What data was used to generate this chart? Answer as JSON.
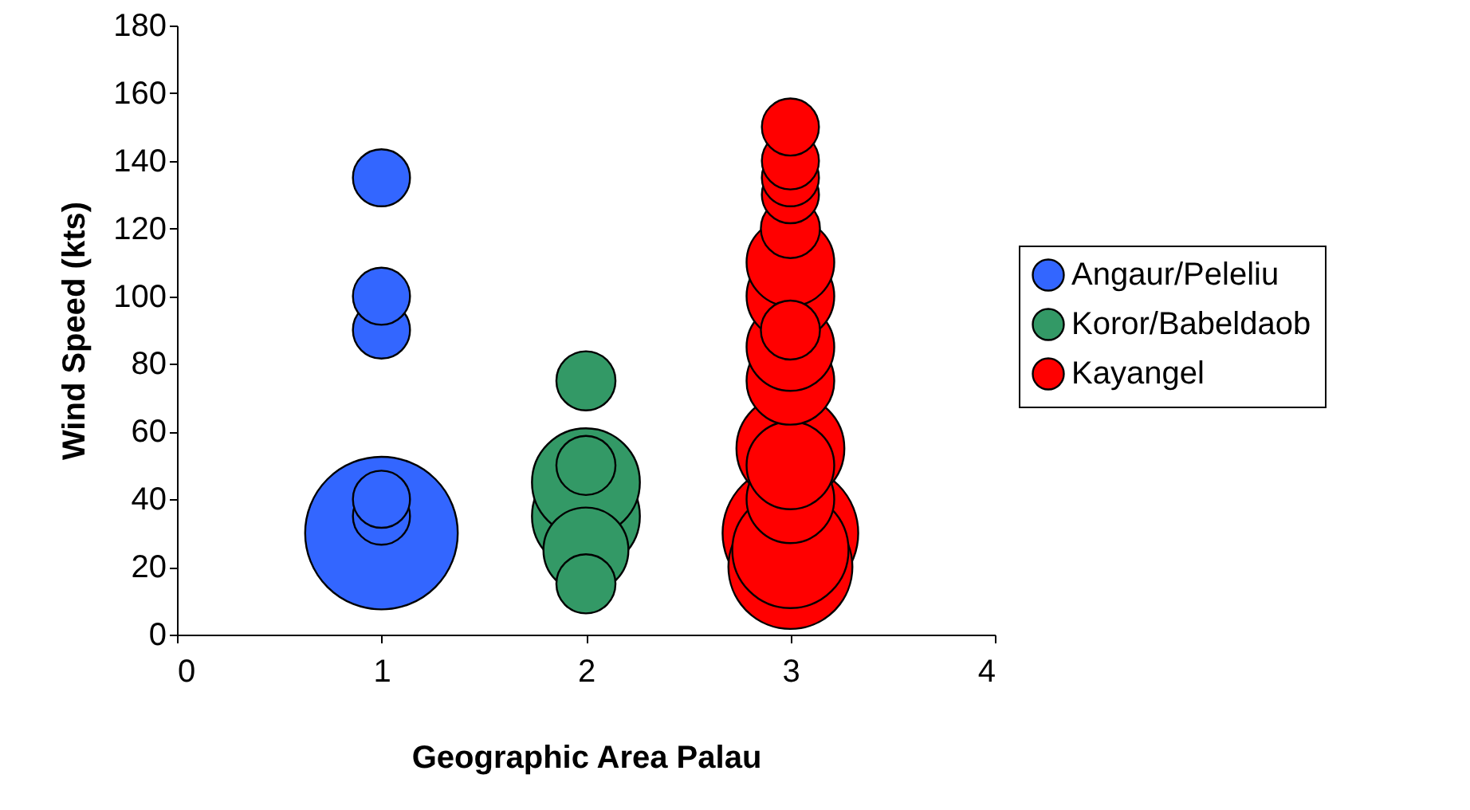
{
  "chart_data": {
    "type": "bubble",
    "xlabel": "Geographic Area Palau",
    "ylabel": "Wind Speed (kts)",
    "xlim": [
      0,
      4
    ],
    "xticks": [
      0,
      1,
      2,
      3,
      4
    ],
    "ylim": [
      0,
      180
    ],
    "yticks": [
      0,
      20,
      40,
      60,
      80,
      100,
      120,
      140,
      160,
      180
    ],
    "grid": false,
    "legend": "right",
    "marker": "circle",
    "series": [
      {
        "name": "Angaur/Peleliu",
        "color": "#3366ff",
        "x": [
          1,
          1,
          1,
          1,
          1,
          1
        ],
        "values": [
          30,
          35,
          40,
          90,
          100,
          135
        ],
        "sizes": [
          1,
          0.14,
          0.14,
          0.14,
          0.14,
          0.14
        ]
      },
      {
        "name": "Koror/Babeldaob",
        "color": "#339966",
        "x": [
          2,
          2,
          2,
          2,
          2,
          2
        ],
        "values": [
          15,
          25,
          35,
          45,
          50,
          75
        ],
        "sizes": [
          0.15,
          0.31,
          0.5,
          0.5,
          0.15,
          0.15
        ]
      },
      {
        "name": "Kayangel",
        "color": "#ff0000",
        "x": [
          3,
          3,
          3,
          3,
          3,
          3,
          3,
          3,
          3,
          3,
          3,
          3,
          3,
          3,
          3,
          3
        ],
        "values": [
          20,
          25,
          30,
          40,
          50,
          55,
          75,
          85,
          90,
          100,
          110,
          120,
          130,
          135,
          140,
          150
        ],
        "sizes": [
          0.66,
          0.58,
          0.79,
          0.33,
          0.33,
          0.5,
          0.33,
          0.33,
          0.15,
          0.33,
          0.33,
          0.15,
          0.14,
          0.14,
          0.14,
          0.14
        ]
      }
    ]
  }
}
